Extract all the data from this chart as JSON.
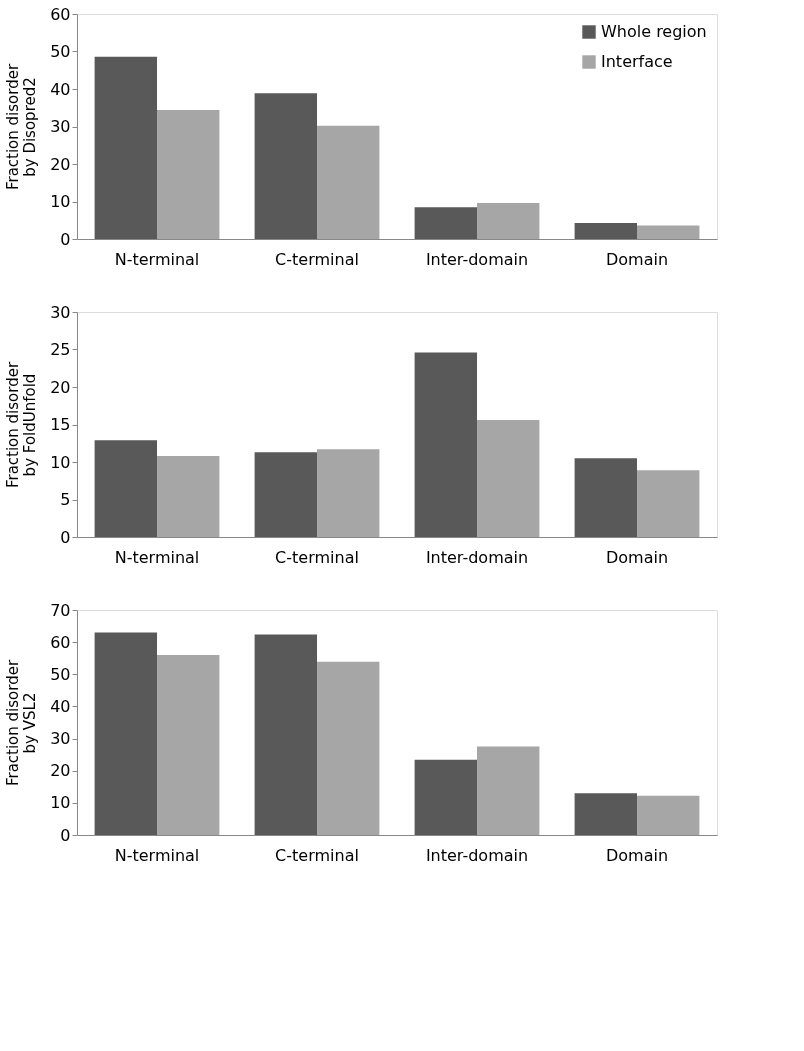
{
  "chart_data": [
    {
      "type": "bar",
      "ylabel": "Fraction disorder\nby Disopred2",
      "categories": [
        "N-terminal",
        "C-terminal",
        "Inter-domain",
        "Domain"
      ],
      "ylim": [
        0,
        60
      ],
      "yticks": [
        0,
        10,
        20,
        30,
        40,
        50,
        60
      ],
      "grid": false,
      "legend": "top right",
      "series": [
        {
          "name": "Whole region",
          "color": "#595959",
          "values": [
            48.6,
            38.9,
            8.5,
            4.3
          ]
        },
        {
          "name": "Interface",
          "color": "#a6a6a6",
          "values": [
            34.4,
            30.2,
            9.6,
            3.6
          ]
        }
      ]
    },
    {
      "type": "bar",
      "ylabel": "Fraction disorder\nby FoldUnfold",
      "categories": [
        "N-terminal",
        "C-terminal",
        "Inter-domain",
        "Domain"
      ],
      "ylim": [
        0,
        30
      ],
      "yticks": [
        0,
        5,
        10,
        15,
        20,
        25,
        30
      ],
      "grid": false,
      "series": [
        {
          "color": "#595959",
          "values": [
            12.9,
            11.3,
            24.6,
            10.5
          ]
        },
        {
          "color": "#a6a6a6",
          "values": [
            10.8,
            11.7,
            15.6,
            8.9
          ]
        }
      ]
    },
    {
      "type": "bar",
      "ylabel": "Fraction disorder\nby VSL2",
      "categories": [
        "N-terminal",
        "C-terminal",
        "Inter-domain",
        "Domain"
      ],
      "ylim": [
        0,
        70
      ],
      "yticks": [
        0,
        10,
        20,
        30,
        40,
        50,
        60,
        70
      ],
      "grid": false,
      "series": [
        {
          "color": "#595959",
          "values": [
            63,
            62.4,
            23.4,
            13
          ]
        },
        {
          "color": "#a6a6a6",
          "values": [
            56,
            53.9,
            27.5,
            12.2
          ]
        }
      ]
    }
  ]
}
